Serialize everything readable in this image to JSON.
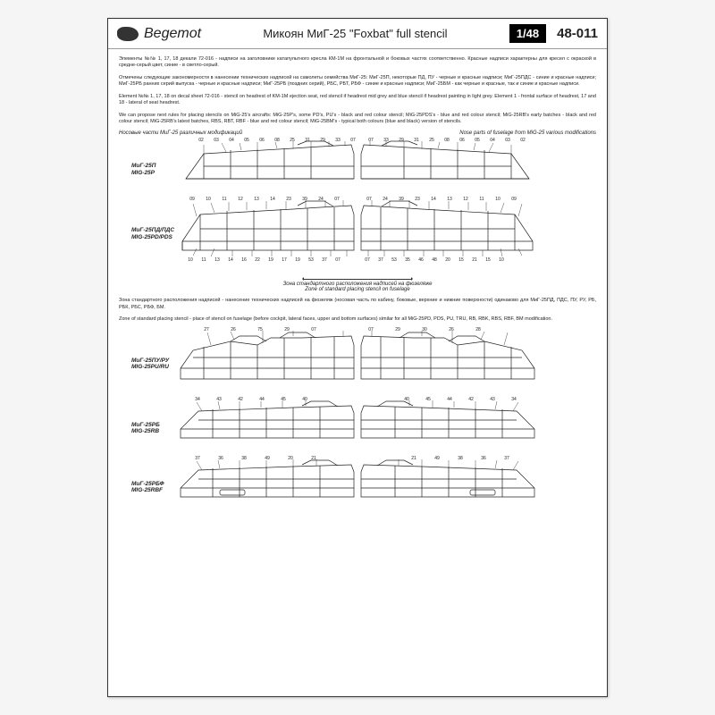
{
  "header": {
    "brand": "Begemot",
    "title": "Микоян МиГ-25 \"Foxbat\" full stencil",
    "scale": "1/48",
    "sku": "48-011"
  },
  "intro": {
    "para_ru1": "Элементы №№ 1, 17, 18 декали 72-016 - надписи на заголовнике катапультного кресла КМ-1М на фронтальной и боковых частях соответственно. Красные надписи характерны для кресел с окраской в средне-серый цвет, синие - в светло-серый.",
    "para_ru2": "Отмечены следующие закономерности в нанесении технических надписей на самолеты семейства МиГ-25: МиГ-25П, некоторые ПД, ПУ - черные и красные надписи; МиГ-25ПДС - синие и красные надписи; МиГ-25РБ ранних серий выпуска - черные и красные надписи; МиГ-25РБ (поздних серий), РБС, РБТ, РБФ - синие и красные надписи; МиГ-25БМ - как черные и красные, так и синие и красные надписи.",
    "para_en1": "Element №№ 1, 17, 18 on decal sheet 72-016 - stencil on headrest of KM-1M ejection seat, red stencil if headrest mid grey and blue stencil if headrest painting in light grey. Element 1 - frontal surface of headrest, 17 and 18 - lateral of seat headrest.",
    "para_en2": "We can propose next rules for placing stencils on MiG-25's aircrafts: MiG-25P's, some PD's, PU's - black and red colour stencil; MiG-25PDS's - blue and red colour stencil; MiG-25RB's early batches - black and red colour stencil; MiG-25RB's latest batches, RBS, RBT, RBF - blue and red colour stencil; MiG-25BM's - typical both colours (blue and black) version of stencils."
  },
  "captions": {
    "nose_ru": "Носовые части МиГ-25 различных модификаций",
    "nose_en": "Nose parts of fuselage from MiG-25 various modifications"
  },
  "variants": {
    "p": {
      "ru": "МиГ-25П",
      "en": "MIG-25P"
    },
    "pd": {
      "ru": "МиГ-25ПД/ПДС",
      "en": "MIG-25PD/PDS"
    },
    "pu": {
      "ru": "МиГ-25ПУ/РУ",
      "en": "MIG-25PU/RU"
    },
    "rb": {
      "ru": "МиГ-25РБ",
      "en": "MIG-25RB"
    },
    "rbf": {
      "ru": "МиГ-25РБФ",
      "en": "MIG-25RBF"
    }
  },
  "callouts": {
    "p_top_left": [
      "02",
      "03",
      "04",
      "05",
      "06",
      "08",
      "25",
      "31",
      "29",
      "33",
      "07"
    ],
    "p_top_right": [
      "07",
      "33",
      "29",
      "31",
      "25",
      "08",
      "06",
      "05",
      "04",
      "03",
      "02"
    ],
    "pd_top_left": [
      "09",
      "10",
      "11",
      "12",
      "13",
      "14",
      "23",
      "39",
      "24",
      "07"
    ],
    "pd_top_right": [
      "07",
      "24",
      "39",
      "23",
      "14",
      "13",
      "12",
      "11",
      "10",
      "09"
    ],
    "pd_bot_left": [
      "10",
      "11",
      "13",
      "14",
      "16",
      "22",
      "19",
      "17",
      "19",
      "53",
      "37",
      "07"
    ],
    "pd_bot_right": [
      "07",
      "37",
      "53",
      "35",
      "46",
      "48",
      "20",
      "15",
      "21",
      "15",
      "10"
    ],
    "pu_top_left": [
      "27",
      "26",
      "75",
      "29",
      "07"
    ],
    "pu_top_right": [
      "07",
      "29",
      "30",
      "26",
      "28"
    ],
    "rb_top_left": [
      "34",
      "43",
      "42",
      "44",
      "45",
      "40"
    ],
    "rb_top_right": [
      "40",
      "45",
      "44",
      "42",
      "43",
      "34"
    ],
    "rbf_top_left": [
      "37",
      "36",
      "38",
      "49",
      "20",
      "21"
    ],
    "rbf_top_right": [
      "21",
      "49",
      "38",
      "36",
      "37"
    ]
  },
  "zone": {
    "ru": "Зона стандартного расположения надписей на фюзеляже",
    "en": "Zone of standard placing stencil on fuselage"
  },
  "mid": {
    "ru": "Зона стандартного расположения надписей - нанесение технических надписей на фюзеляж (носовая часть по кабину, боковые, верхние и нижние поверхности) одинаково для МиГ-25ПД, ПДС, ПУ, РУ, РБ, РБК, РБС, РБФ, БМ.",
    "en": "Zone of standard placing stencil - place of stencil on fuselage (before cockpit, lateral faces, upper and bottom surfaces) similar for all MiG-25PD, PDS, PU, TRU, RB, RBK, RBS, RBF, BM modification."
  },
  "colors": {
    "line": "#222222",
    "bg": "#ffffff"
  }
}
